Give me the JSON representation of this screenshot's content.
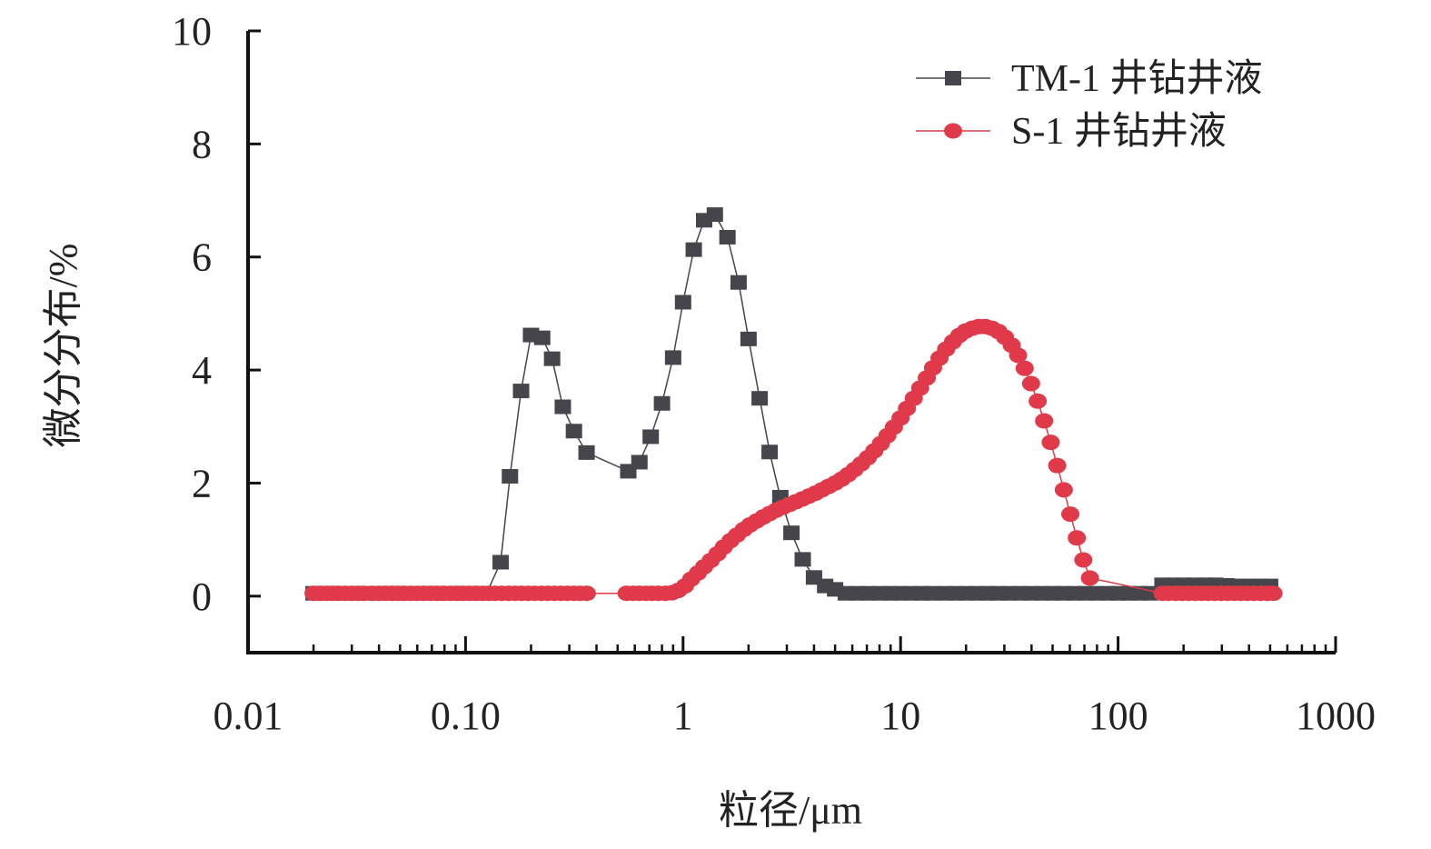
{
  "chart_data": {
    "type": "scatter",
    "title": "",
    "xlabel": "粒径/μm",
    "ylabel": "微分分布/%",
    "x_scale": "log",
    "xlim": [
      0.01,
      1000
    ],
    "ylim": [
      -1,
      10
    ],
    "x_ticks": [
      {
        "value": 0.01,
        "label": "0.01"
      },
      {
        "value": 0.1,
        "label": "0.10"
      },
      {
        "value": 1,
        "label": "1"
      },
      {
        "value": 10,
        "label": "10"
      },
      {
        "value": 100,
        "label": "100"
      },
      {
        "value": 1000,
        "label": "1000"
      }
    ],
    "y_ticks": [
      {
        "value": 0,
        "label": "0"
      },
      {
        "value": 2,
        "label": "2"
      },
      {
        "value": 4,
        "label": "4"
      },
      {
        "value": 6,
        "label": "6"
      },
      {
        "value": 8,
        "label": "8"
      },
      {
        "value": 10,
        "label": "10"
      }
    ],
    "legend_position": "top-right",
    "grid": false,
    "series": [
      {
        "name": "TM-1 井钻井液",
        "color": "#45454b",
        "marker": "square",
        "points": [
          [
            0.02,
            0.05
          ],
          [
            0.0225,
            0.05
          ],
          [
            0.025,
            0.05
          ],
          [
            0.028,
            0.05
          ],
          [
            0.0315,
            0.05
          ],
          [
            0.0355,
            0.05
          ],
          [
            0.04,
            0.05
          ],
          [
            0.045,
            0.05
          ],
          [
            0.05,
            0.05
          ],
          [
            0.056,
            0.05
          ],
          [
            0.063,
            0.05
          ],
          [
            0.071,
            0.05
          ],
          [
            0.08,
            0.05
          ],
          [
            0.09,
            0.05
          ],
          [
            0.1,
            0.05
          ],
          [
            0.112,
            0.05
          ],
          [
            0.125,
            0.05
          ],
          [
            0.145,
            0.6
          ],
          [
            0.16,
            2.12
          ],
          [
            0.18,
            3.63
          ],
          [
            0.2,
            4.62
          ],
          [
            0.225,
            4.57
          ],
          [
            0.25,
            4.2
          ],
          [
            0.28,
            3.35
          ],
          [
            0.315,
            2.92
          ],
          [
            0.36,
            2.54
          ],
          [
            0.56,
            2.21
          ],
          [
            0.63,
            2.37
          ],
          [
            0.71,
            2.82
          ],
          [
            0.8,
            3.41
          ],
          [
            0.9,
            4.22
          ],
          [
            1.0,
            5.2
          ],
          [
            1.12,
            6.13
          ],
          [
            1.25,
            6.65
          ],
          [
            1.4,
            6.75
          ],
          [
            1.6,
            6.35
          ],
          [
            1.8,
            5.55
          ],
          [
            2.0,
            4.55
          ],
          [
            2.25,
            3.5
          ],
          [
            2.5,
            2.55
          ],
          [
            2.8,
            1.75
          ],
          [
            3.15,
            1.12
          ],
          [
            3.55,
            0.65
          ],
          [
            4.0,
            0.33
          ],
          [
            4.5,
            0.18
          ],
          [
            5.0,
            0.12
          ],
          [
            5.6,
            0.05
          ],
          [
            6.3,
            0.05
          ],
          [
            7.1,
            0.05
          ],
          [
            8.0,
            0.05
          ],
          [
            9.0,
            0.05
          ],
          [
            10,
            0.05
          ],
          [
            11.2,
            0.05
          ],
          [
            12.5,
            0.05
          ],
          [
            14,
            0.05
          ],
          [
            16,
            0.05
          ],
          [
            18,
            0.05
          ],
          [
            20,
            0.05
          ],
          [
            22.5,
            0.05
          ],
          [
            25,
            0.05
          ],
          [
            28,
            0.05
          ],
          [
            31.5,
            0.05
          ],
          [
            35.5,
            0.05
          ],
          [
            40,
            0.05
          ],
          [
            45,
            0.05
          ],
          [
            50,
            0.05
          ],
          [
            56,
            0.05
          ],
          [
            63,
            0.05
          ],
          [
            71,
            0.05
          ],
          [
            80,
            0.05
          ],
          [
            90,
            0.05
          ],
          [
            100,
            0.05
          ],
          [
            112,
            0.05
          ],
          [
            125,
            0.05
          ],
          [
            140,
            0.05
          ],
          [
            160,
            0.2
          ],
          [
            180,
            0.2
          ],
          [
            200,
            0.2
          ],
          [
            225,
            0.2
          ],
          [
            250,
            0.2
          ],
          [
            280,
            0.2
          ],
          [
            315,
            0.19
          ],
          [
            355,
            0.18
          ],
          [
            400,
            0.18
          ],
          [
            450,
            0.18
          ],
          [
            500,
            0.18
          ]
        ]
      },
      {
        "name": "S-1 井钻井液",
        "color": "#e0394a",
        "marker": "circle",
        "points": [
          [
            0.02,
            0.05
          ],
          [
            0.0215,
            0.05
          ],
          [
            0.023,
            0.05
          ],
          [
            0.0245,
            0.05
          ],
          [
            0.026,
            0.05
          ],
          [
            0.028,
            0.05
          ],
          [
            0.03,
            0.05
          ],
          [
            0.032,
            0.05
          ],
          [
            0.034,
            0.05
          ],
          [
            0.037,
            0.05
          ],
          [
            0.04,
            0.05
          ],
          [
            0.043,
            0.05
          ],
          [
            0.046,
            0.05
          ],
          [
            0.049,
            0.05
          ],
          [
            0.052,
            0.05
          ],
          [
            0.056,
            0.05
          ],
          [
            0.06,
            0.05
          ],
          [
            0.064,
            0.05
          ],
          [
            0.069,
            0.05
          ],
          [
            0.074,
            0.05
          ],
          [
            0.079,
            0.05
          ],
          [
            0.085,
            0.05
          ],
          [
            0.091,
            0.05
          ],
          [
            0.097,
            0.05
          ],
          [
            0.104,
            0.05
          ],
          [
            0.112,
            0.05
          ],
          [
            0.12,
            0.05
          ],
          [
            0.128,
            0.05
          ],
          [
            0.137,
            0.05
          ],
          [
            0.147,
            0.05
          ],
          [
            0.158,
            0.05
          ],
          [
            0.169,
            0.05
          ],
          [
            0.181,
            0.05
          ],
          [
            0.194,
            0.05
          ],
          [
            0.208,
            0.05
          ],
          [
            0.223,
            0.05
          ],
          [
            0.239,
            0.05
          ],
          [
            0.256,
            0.05
          ],
          [
            0.274,
            0.05
          ],
          [
            0.294,
            0.05
          ],
          [
            0.315,
            0.05
          ],
          [
            0.337,
            0.05
          ],
          [
            0.361,
            0.05
          ],
          [
            0.55,
            0.05
          ],
          [
            0.59,
            0.05
          ],
          [
            0.63,
            0.05
          ],
          [
            0.675,
            0.05
          ],
          [
            0.72,
            0.05
          ],
          [
            0.77,
            0.05
          ],
          [
            0.83,
            0.05
          ],
          [
            0.89,
            0.06
          ],
          [
            0.95,
            0.1
          ],
          [
            1.02,
            0.18
          ],
          [
            1.09,
            0.3
          ],
          [
            1.17,
            0.41
          ],
          [
            1.25,
            0.52
          ],
          [
            1.34,
            0.63
          ],
          [
            1.44,
            0.75
          ],
          [
            1.54,
            0.87
          ],
          [
            1.65,
            0.98
          ],
          [
            1.77,
            1.08
          ],
          [
            1.9,
            1.18
          ],
          [
            2.03,
            1.26
          ],
          [
            2.18,
            1.33
          ],
          [
            2.34,
            1.4
          ],
          [
            2.5,
            1.46
          ],
          [
            2.68,
            1.52
          ],
          [
            2.87,
            1.57
          ],
          [
            3.08,
            1.62
          ],
          [
            3.3,
            1.67
          ],
          [
            3.54,
            1.72
          ],
          [
            3.79,
            1.77
          ],
          [
            4.06,
            1.82
          ],
          [
            4.35,
            1.88
          ],
          [
            4.66,
            1.94
          ],
          [
            5.0,
            2.0
          ],
          [
            5.36,
            2.07
          ],
          [
            5.74,
            2.15
          ],
          [
            6.15,
            2.24
          ],
          [
            6.59,
            2.34
          ],
          [
            7.07,
            2.45
          ],
          [
            7.57,
            2.57
          ],
          [
            8.12,
            2.7
          ],
          [
            8.7,
            2.84
          ],
          [
            9.32,
            2.99
          ],
          [
            9.99,
            3.15
          ],
          [
            10.7,
            3.32
          ],
          [
            11.5,
            3.5
          ],
          [
            12.3,
            3.68
          ],
          [
            13.2,
            3.86
          ],
          [
            14.1,
            4.04
          ],
          [
            15.1,
            4.21
          ],
          [
            16.2,
            4.37
          ],
          [
            17.4,
            4.5
          ],
          [
            18.6,
            4.61
          ],
          [
            19.9,
            4.69
          ],
          [
            21.4,
            4.74
          ],
          [
            22.9,
            4.77
          ],
          [
            24.5,
            4.77
          ],
          [
            26.3,
            4.74
          ],
          [
            28.2,
            4.68
          ],
          [
            30.2,
            4.58
          ],
          [
            32.4,
            4.44
          ],
          [
            34.7,
            4.26
          ],
          [
            37.2,
            4.03
          ],
          [
            39.8,
            3.76
          ],
          [
            42.7,
            3.45
          ],
          [
            45.7,
            3.1
          ],
          [
            49.0,
            2.72
          ],
          [
            52.5,
            2.31
          ],
          [
            56.3,
            1.88
          ],
          [
            60.3,
            1.45
          ],
          [
            64.6,
            1.03
          ],
          [
            69.2,
            0.64
          ],
          [
            74.2,
            0.32
          ],
          [
            160,
            0.05
          ],
          [
            171,
            0.05
          ],
          [
            184,
            0.05
          ],
          [
            197,
            0.05
          ],
          [
            211,
            0.05
          ],
          [
            226,
            0.05
          ],
          [
            242,
            0.05
          ],
          [
            259,
            0.05
          ],
          [
            278,
            0.05
          ],
          [
            298,
            0.05
          ],
          [
            319,
            0.05
          ],
          [
            342,
            0.05
          ],
          [
            367,
            0.05
          ],
          [
            393,
            0.05
          ],
          [
            421,
            0.05
          ],
          [
            451,
            0.05
          ],
          [
            484,
            0.05
          ],
          [
            518,
            0.05
          ]
        ]
      }
    ]
  }
}
